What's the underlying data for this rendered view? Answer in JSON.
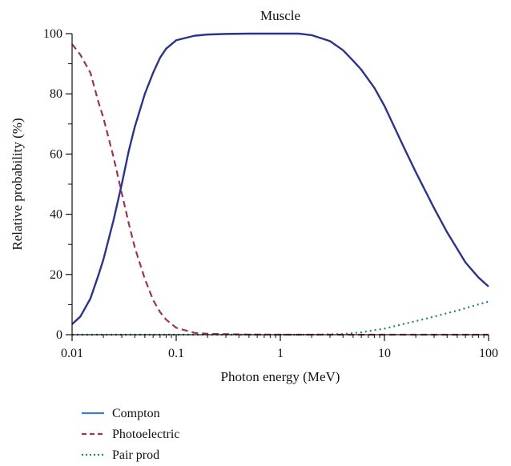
{
  "chart_data": {
    "type": "line",
    "title": "Muscle",
    "xlabel": "Photon energy (MeV)",
    "ylabel": "Relative probability (%)",
    "x_scale": "log",
    "xlim": [
      0.01,
      100
    ],
    "ylim": [
      0,
      100
    ],
    "x_ticks": [
      {
        "value": 0.01,
        "label": "0.01"
      },
      {
        "value": 0.1,
        "label": "0.1"
      },
      {
        "value": 1,
        "label": "1"
      },
      {
        "value": 10,
        "label": "10"
      },
      {
        "value": 100,
        "label": "100"
      }
    ],
    "y_ticks": [
      {
        "value": 0,
        "label": "0"
      },
      {
        "value": 20,
        "label": "20"
      },
      {
        "value": 40,
        "label": "40"
      },
      {
        "value": 60,
        "label": "60"
      },
      {
        "value": 80,
        "label": "80"
      },
      {
        "value": 100,
        "label": "100"
      }
    ],
    "grid": false,
    "legend_position": "bottom-left",
    "series": [
      {
        "name": "Compton",
        "style": "solid",
        "color": "#2b3486",
        "legend_color": "#3d7cc9",
        "points": [
          [
            0.01,
            3.5
          ],
          [
            0.012,
            6
          ],
          [
            0.015,
            12
          ],
          [
            0.018,
            20
          ],
          [
            0.02,
            25
          ],
          [
            0.025,
            38
          ],
          [
            0.03,
            50
          ],
          [
            0.035,
            61
          ],
          [
            0.04,
            69
          ],
          [
            0.05,
            80
          ],
          [
            0.06,
            87
          ],
          [
            0.07,
            92
          ],
          [
            0.08,
            95
          ],
          [
            0.1,
            97.8
          ],
          [
            0.15,
            99.3
          ],
          [
            0.2,
            99.7
          ],
          [
            0.3,
            99.9
          ],
          [
            0.5,
            100
          ],
          [
            1,
            100
          ],
          [
            1.5,
            100
          ],
          [
            2,
            99.5
          ],
          [
            3,
            97.5
          ],
          [
            4,
            94.5
          ],
          [
            5,
            91
          ],
          [
            6,
            88
          ],
          [
            8,
            82
          ],
          [
            10,
            76
          ],
          [
            15,
            63
          ],
          [
            20,
            54
          ],
          [
            30,
            42
          ],
          [
            40,
            34
          ],
          [
            50,
            28.5
          ],
          [
            60,
            24
          ],
          [
            80,
            19
          ],
          [
            100,
            16
          ]
        ]
      },
      {
        "name": "Photoelectric",
        "style": "dashed",
        "color": "#9b3554",
        "points": [
          [
            0.01,
            96.5
          ],
          [
            0.012,
            93
          ],
          [
            0.015,
            87
          ],
          [
            0.018,
            77
          ],
          [
            0.02,
            72
          ],
          [
            0.025,
            59
          ],
          [
            0.03,
            47
          ],
          [
            0.035,
            37
          ],
          [
            0.04,
            29
          ],
          [
            0.05,
            18.5
          ],
          [
            0.06,
            11.5
          ],
          [
            0.07,
            7.5
          ],
          [
            0.08,
            5
          ],
          [
            0.1,
            2.3
          ],
          [
            0.15,
            0.6
          ],
          [
            0.2,
            0.3
          ],
          [
            0.5,
            0.05
          ],
          [
            1,
            0
          ],
          [
            10,
            0
          ],
          [
            100,
            0
          ]
        ]
      },
      {
        "name": "Pair prod",
        "style": "dotted",
        "color": "#1e8a5a",
        "points": [
          [
            0.01,
            0
          ],
          [
            1,
            0
          ],
          [
            2,
            0
          ],
          [
            4,
            0.2
          ],
          [
            6,
            0.8
          ],
          [
            8,
            1.5
          ],
          [
            10,
            2
          ],
          [
            15,
            3.5
          ],
          [
            20,
            4.5
          ],
          [
            30,
            6
          ],
          [
            50,
            8
          ],
          [
            70,
            9.5
          ],
          [
            100,
            11
          ]
        ]
      }
    ]
  }
}
